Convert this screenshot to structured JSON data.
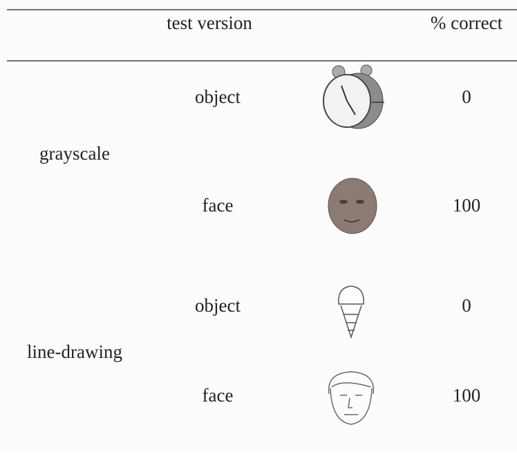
{
  "table": {
    "header": {
      "version": "test version",
      "correct": "% correct"
    },
    "groups": [
      {
        "label": "grayscale",
        "rows": [
          {
            "version": "object",
            "correct": 0
          },
          {
            "version": "face",
            "correct": 100
          }
        ]
      },
      {
        "label": "line-drawing",
        "rows": [
          {
            "version": "object",
            "correct": 0
          },
          {
            "version": "face",
            "correct": 100
          }
        ]
      }
    ]
  }
}
